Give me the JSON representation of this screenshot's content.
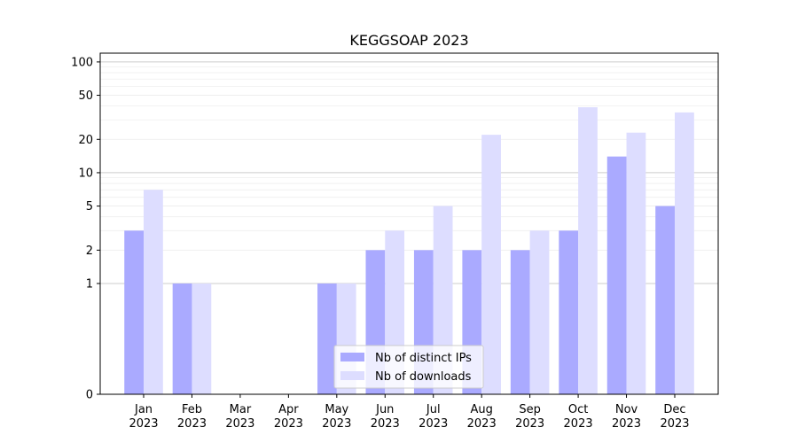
{
  "chart_data": {
    "type": "bar",
    "title": "KEGGSOAP 2023",
    "xlabel": "",
    "ylabel": "",
    "y_scale": "symlog",
    "ylim": [
      0,
      120
    ],
    "yticks": [
      0,
      1,
      2,
      5,
      10,
      20,
      50,
      100
    ],
    "categories": [
      [
        "Jan",
        "2023"
      ],
      [
        "Feb",
        "2023"
      ],
      [
        "Mar",
        "2023"
      ],
      [
        "Apr",
        "2023"
      ],
      [
        "May",
        "2023"
      ],
      [
        "Jun",
        "2023"
      ],
      [
        "Jul",
        "2023"
      ],
      [
        "Aug",
        "2023"
      ],
      [
        "Sep",
        "2023"
      ],
      [
        "Oct",
        "2023"
      ],
      [
        "Nov",
        "2023"
      ],
      [
        "Dec",
        "2023"
      ]
    ],
    "series": [
      {
        "name": "Nb of distinct IPs",
        "color": "#aaaaff",
        "values": [
          3,
          1,
          0,
          0,
          1,
          2,
          2,
          2,
          2,
          3,
          14,
          5
        ]
      },
      {
        "name": "Nb of downloads",
        "color": "#ddddff",
        "values": [
          7,
          1,
          0,
          0,
          1,
          3,
          5,
          22,
          3,
          39,
          23,
          35
        ]
      }
    ],
    "grid": true,
    "legend_position": "lower center"
  }
}
